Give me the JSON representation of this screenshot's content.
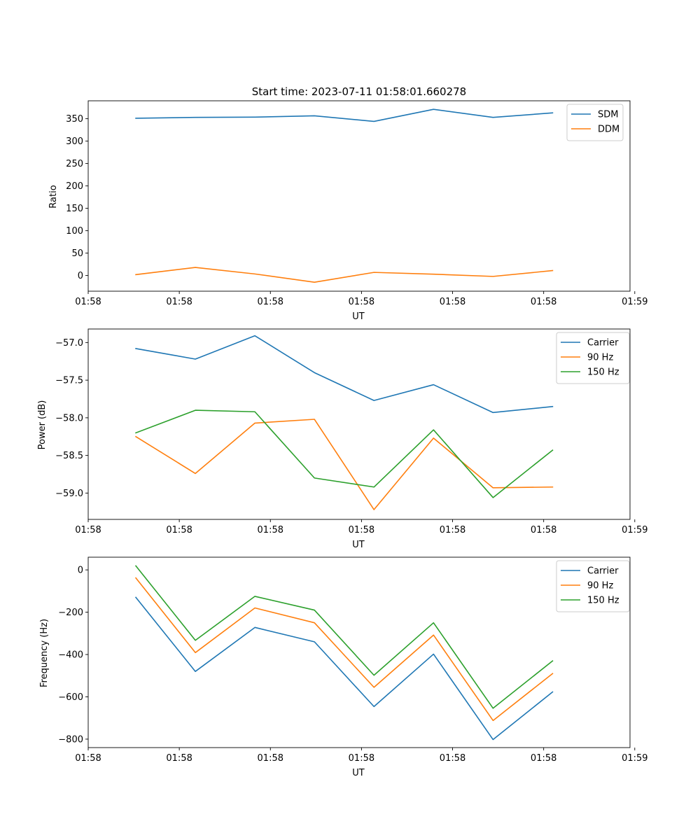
{
  "figure_title": "Start time: 2023-07-11 01:58:01.660278",
  "chart_data": [
    {
      "type": "line",
      "title": "Start time: 2023-07-11 01:58:01.660278",
      "xlabel": "UT",
      "ylabel": "Ratio",
      "x": [
        1,
        2,
        3,
        4,
        5,
        6,
        7,
        8
      ],
      "xlim": [
        0.2,
        9.3
      ],
      "x_ticks": [
        0.2,
        1.73,
        3.26,
        4.79,
        6.32,
        7.85,
        9.38
      ],
      "x_tick_labels": [
        "01:58",
        "01:58",
        "01:58",
        "01:58",
        "01:58",
        "01:58",
        "01:59"
      ],
      "ylim": [
        -35,
        390
      ],
      "y_ticks": [
        0,
        50,
        100,
        150,
        200,
        250,
        300,
        350
      ],
      "y_tick_labels": [
        "0",
        "50",
        "100",
        "150",
        "200",
        "250",
        "300",
        "350"
      ],
      "legend_position": "top-right",
      "series": [
        {
          "name": "SDM",
          "color": "#1f77b4",
          "values": [
            351,
            353,
            353.5,
            356.5,
            344,
            371,
            353,
            363
          ]
        },
        {
          "name": "DDM",
          "color": "#ff7f0e",
          "values": [
            2,
            18,
            3.5,
            -15,
            7,
            3,
            -2,
            11
          ]
        }
      ]
    },
    {
      "type": "line",
      "title": "",
      "xlabel": "UT",
      "ylabel": "Power (dB)",
      "x": [
        1,
        2,
        3,
        4,
        5,
        6,
        7,
        8
      ],
      "xlim": [
        0.2,
        9.3
      ],
      "x_ticks": [
        0.2,
        1.73,
        3.26,
        4.79,
        6.32,
        7.85,
        9.38
      ],
      "x_tick_labels": [
        "01:58",
        "01:58",
        "01:58",
        "01:58",
        "01:58",
        "01:58",
        "01:59"
      ],
      "ylim": [
        -59.35,
        -56.82
      ],
      "y_ticks": [
        -59.0,
        -58.5,
        -58.0,
        -57.5,
        -57.0
      ],
      "y_tick_labels": [
        "−59.0",
        "−58.5",
        "−58.0",
        "−57.5",
        "−57.0"
      ],
      "legend_position": "top-right",
      "series": [
        {
          "name": "Carrier",
          "color": "#1f77b4",
          "values": [
            -57.08,
            -57.22,
            -56.91,
            -57.4,
            -57.77,
            -57.56,
            -57.93,
            -57.85
          ]
        },
        {
          "name": "90 Hz",
          "color": "#ff7f0e",
          "values": [
            -58.25,
            -58.74,
            -58.07,
            -58.02,
            -59.22,
            -58.27,
            -58.93,
            -58.92
          ]
        },
        {
          "name": "150 Hz",
          "color": "#2ca02c",
          "values": [
            -58.2,
            -57.9,
            -57.92,
            -58.8,
            -58.92,
            -58.16,
            -59.06,
            -58.43
          ]
        }
      ]
    },
    {
      "type": "line",
      "title": "",
      "xlabel": "UT",
      "ylabel": "Frequency (Hz)",
      "x": [
        1,
        2,
        3,
        4,
        5,
        6,
        7,
        8
      ],
      "xlim": [
        0.2,
        9.3
      ],
      "x_ticks": [
        0.2,
        1.73,
        3.26,
        4.79,
        6.32,
        7.85,
        9.38
      ],
      "x_tick_labels": [
        "01:58",
        "01:58",
        "01:58",
        "01:58",
        "01:58",
        "01:58",
        "01:59"
      ],
      "ylim": [
        -840,
        60
      ],
      "y_ticks": [
        -800,
        -600,
        -400,
        -200,
        0
      ],
      "y_tick_labels": [
        "−800",
        "−600",
        "−400",
        "−200",
        "0"
      ],
      "legend_position": "top-right",
      "series": [
        {
          "name": "Carrier",
          "color": "#1f77b4",
          "values": [
            -130,
            -480,
            -272,
            -340,
            -646,
            -398,
            -802,
            -577
          ]
        },
        {
          "name": "90 Hz",
          "color": "#ff7f0e",
          "values": [
            -38,
            -391,
            -180,
            -250,
            -555,
            -308,
            -712,
            -490
          ]
        },
        {
          "name": "150 Hz",
          "color": "#2ca02c",
          "values": [
            19,
            -333,
            -125,
            -190,
            -498,
            -250,
            -654,
            -430
          ]
        }
      ]
    }
  ]
}
